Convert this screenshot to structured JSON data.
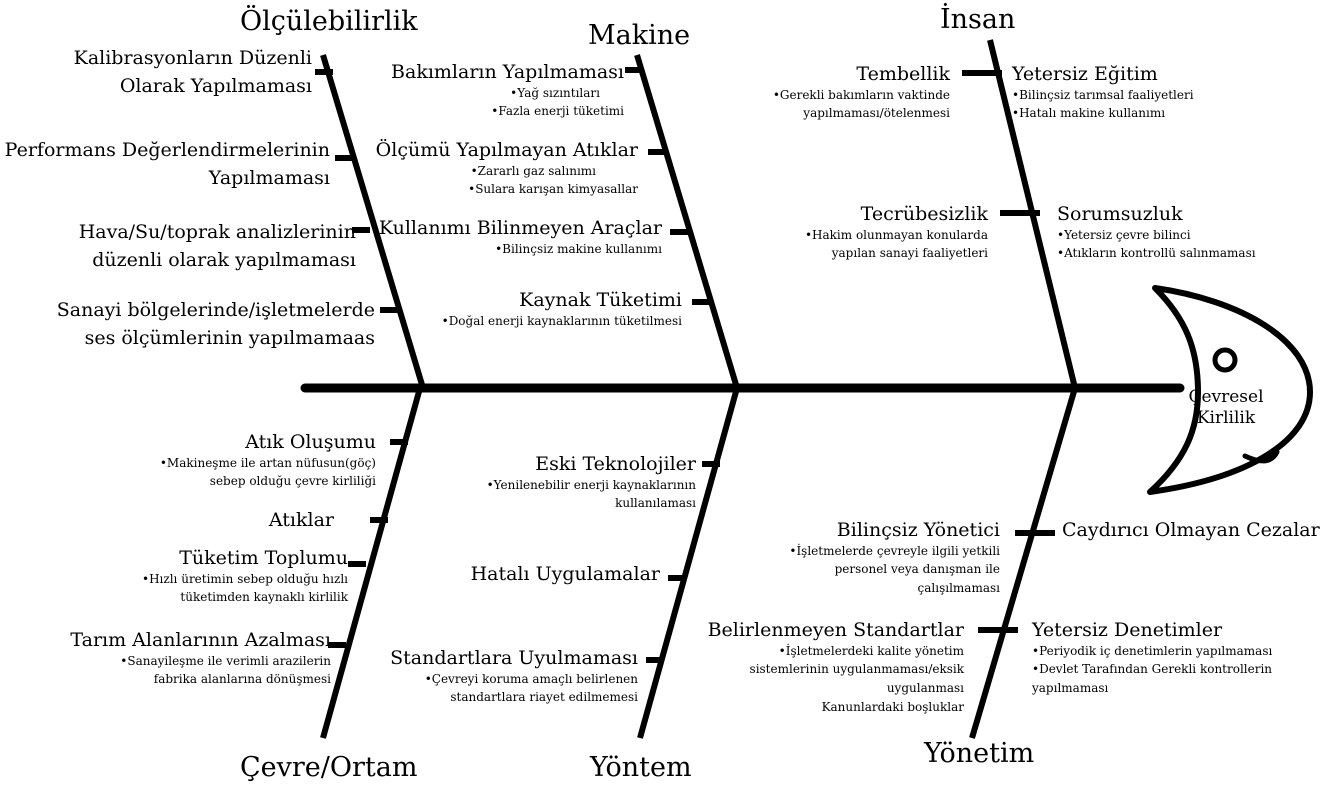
{
  "head_label": [
    "Çevresel",
    "Kirlilik"
  ],
  "categories": {
    "olculebilirlik": "Ölçülebilirlik",
    "makine": "Makine",
    "insan": "İnsan",
    "cevre": "Çevre/Ortam",
    "yontem": "Yöntem",
    "yonetim": "Yönetim"
  },
  "olculebilirlik": {
    "items": [
      [
        "Kalibrasyonların Düzenli",
        "Olarak Yapılmaması"
      ],
      [
        "Performans Değerlendirmelerinin",
        "Yapılmaması"
      ],
      [
        "Hava/Su/toprak analizlerinin",
        "düzenli olarak yapılmaması"
      ],
      [
        "Sanayi bölgelerinde/işletmelerde",
        "ses ölçümlerinin yapılmamaas"
      ]
    ]
  },
  "makine": {
    "items": [
      {
        "title": "Bakımların Yapılmaması",
        "subs": [
          "•Yağ sızıntıları",
          "•Fazla enerji tüketimi"
        ]
      },
      {
        "title": "Ölçümü Yapılmayan Atıklar",
        "subs": [
          "•Zararlı gaz salınımı",
          "•Sulara karışan kimyasallar"
        ]
      },
      {
        "title": "Kullanımı Bilinmeyen Araçlar",
        "subs": [
          "•Bilinçsiz makine kullanımı"
        ]
      },
      {
        "title": "Kaynak Tüketimi",
        "subs": [
          "•Doğal enerji kaynaklarının tüketilmesi"
        ]
      }
    ]
  },
  "insan": {
    "left": [
      {
        "title": "Tembellik",
        "subs": [
          "•Gerekli bakımların vaktinde",
          "yapılmaması/ötelenmesi"
        ]
      },
      {
        "title": "Tecrübesizlik",
        "subs": [
          "•Hakim olunmayan konularda",
          "yapılan sanayi faaliyetleri"
        ]
      }
    ],
    "right": [
      {
        "title": "Yetersiz Eğitim",
        "subs": [
          "•Bilinçsiz tarımsal faaliyetleri",
          "•Hatalı makine kullanımı"
        ]
      },
      {
        "title": "Sorumsuzluk",
        "subs": [
          "•Yetersiz çevre bilinci",
          "•Atıkların kontrollü salınmaması"
        ]
      }
    ]
  },
  "cevre": {
    "items": [
      {
        "title": "Atık Oluşumu",
        "subs": [
          "•Makineşme ile artan nüfusun(göç)",
          "sebep olduğu çevre kirliliği"
        ]
      },
      {
        "title": "Atıklar",
        "subs": []
      },
      {
        "title": "Tüketim Toplumu",
        "subs": [
          "•Hızlı üretimin sebep olduğu hızlı",
          "tüketimden kaynaklı kirlilik"
        ]
      },
      {
        "title": "Tarım Alanlarının Azalması",
        "subs": [
          "•Sanayileşme ile verimli arazilerin",
          "fabrika alanlarına dönüşmesi"
        ]
      }
    ]
  },
  "yontem": {
    "items": [
      {
        "title": "Eski Teknolojiler",
        "subs": [
          "•Yenilenebilir enerji kaynaklarının",
          "kullanılaması"
        ]
      },
      {
        "title": "Hatalı Uygulamalar",
        "subs": []
      },
      {
        "title": "Standartlara Uyulmaması",
        "subs": [
          "•Çevreyi koruma amaçlı belirlenen",
          "standartlara riayet edilmemesi"
        ]
      }
    ]
  },
  "yonetim": {
    "left": [
      {
        "title": "Bilinçsiz Yönetici",
        "subs": [
          "•İşletmelerde çevreyle ilgili yetkili",
          "personel veya danışman ile",
          "çalışılmaması"
        ]
      },
      {
        "title": "Belirlenmeyen Standartlar",
        "subs": [
          "•İşletmelerdeki kalite yönetim",
          "sistemlerinin uygulanmaması/eksik",
          "uygulanması",
          "Kanunlardaki boşluklar"
        ]
      }
    ],
    "right": [
      {
        "title": "Caydırıcı Olmayan Cezalar",
        "subs": []
      },
      {
        "title": "Yetersiz Denetimler",
        "subs": [
          "•Periyodik iç denetimlerin yapılmaması",
          "•Devlet Tarafından Gerekli kontrollerin",
          "yapılmaması"
        ]
      }
    ]
  },
  "colors": {
    "line": "#000000",
    "background": "#ffffff"
  }
}
